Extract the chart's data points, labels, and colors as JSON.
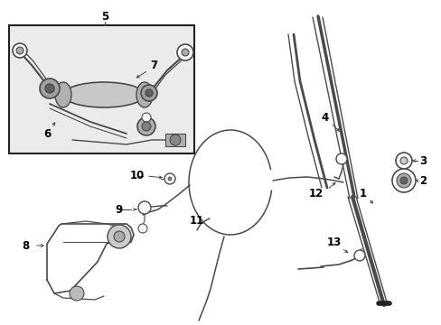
{
  "bg_color": "#ffffff",
  "line_color": "#4a4a4a",
  "box_fill": "#ebebeb",
  "box_border": "#222222",
  "label_color": "#000000",
  "label_fontsize": 8.5,
  "fig_width": 4.89,
  "fig_height": 3.6,
  "dpi": 100,
  "xlim": [
    0,
    489
  ],
  "ylim": [
    0,
    360
  ]
}
